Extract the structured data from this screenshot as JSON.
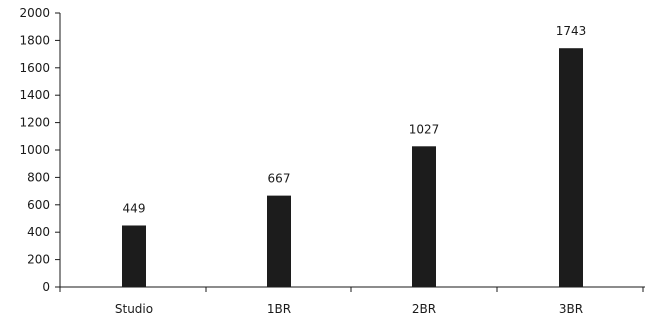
{
  "chart_data": {
    "type": "bar",
    "categories": [
      "Studio",
      "1BR",
      "2BR",
      "3BR"
    ],
    "values": [
      449,
      667,
      1027,
      1743
    ],
    "data_labels": [
      "449",
      "667",
      "1027",
      "1743"
    ],
    "ylim": [
      0,
      2000
    ],
    "yticks": [
      0,
      200,
      400,
      600,
      800,
      1000,
      1200,
      1400,
      1600,
      1800,
      2000
    ],
    "grid": false,
    "legend": "none",
    "bar_color": "#1c1c1c"
  }
}
